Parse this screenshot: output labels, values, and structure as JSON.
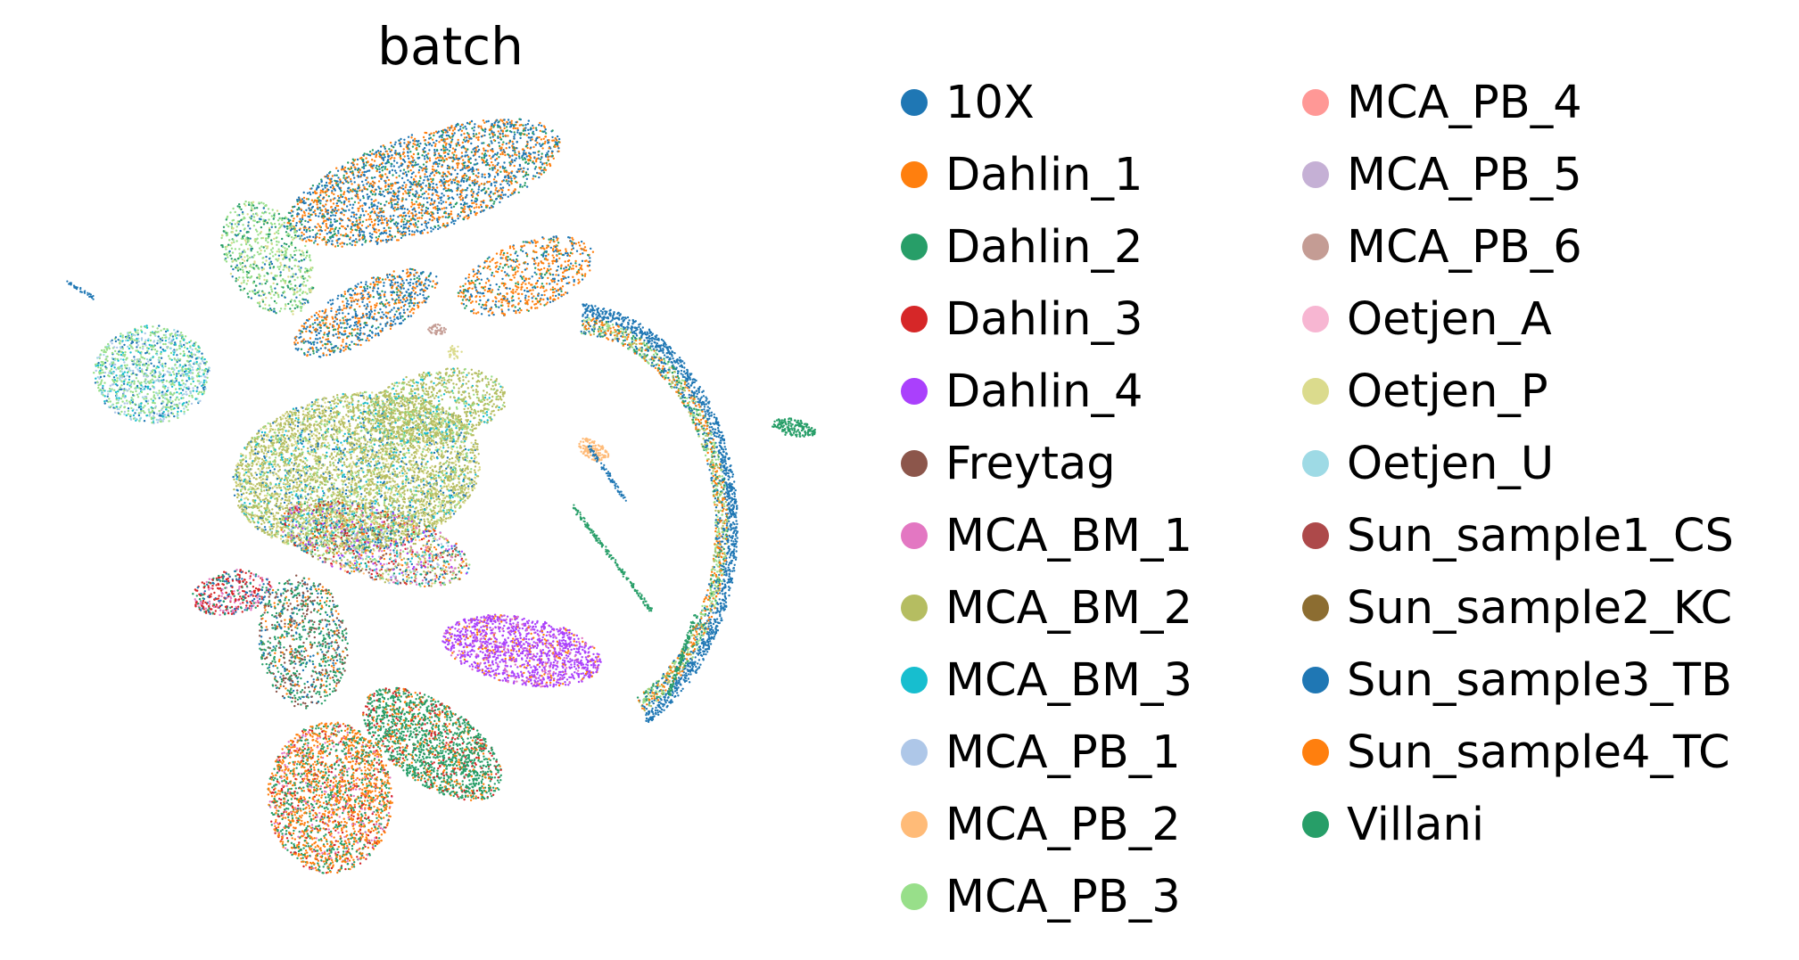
{
  "chart_data": {
    "type": "scatter",
    "title": "batch",
    "xlabel": "",
    "ylabel": "",
    "axes_visible": false,
    "grid": false,
    "legend_placement": "right, two columns",
    "legend": [
      {
        "name": "10X",
        "color": "#1f77b4"
      },
      {
        "name": "Dahlin_1",
        "color": "#ff7f0e"
      },
      {
        "name": "Dahlin_2",
        "color": "#279e68"
      },
      {
        "name": "Dahlin_3",
        "color": "#d62728"
      },
      {
        "name": "Dahlin_4",
        "color": "#aa40fc"
      },
      {
        "name": "Freytag",
        "color": "#8c564b"
      },
      {
        "name": "MCA_BM_1",
        "color": "#e377c2"
      },
      {
        "name": "MCA_BM_2",
        "color": "#b5bd61"
      },
      {
        "name": "MCA_BM_3",
        "color": "#17becf"
      },
      {
        "name": "MCA_PB_1",
        "color": "#aec7e8"
      },
      {
        "name": "MCA_PB_2",
        "color": "#ffbb78"
      },
      {
        "name": "MCA_PB_3",
        "color": "#98df8a"
      },
      {
        "name": "MCA_PB_4",
        "color": "#ff9896"
      },
      {
        "name": "MCA_PB_5",
        "color": "#c5b0d5"
      },
      {
        "name": "MCA_PB_6",
        "color": "#c49c94"
      },
      {
        "name": "Oetjen_A",
        "color": "#f7b6d2"
      },
      {
        "name": "Oetjen_P",
        "color": "#dbdb8d"
      },
      {
        "name": "Oetjen_U",
        "color": "#9edae5"
      },
      {
        "name": "Sun_sample1_CS",
        "color": "#ad494a"
      },
      {
        "name": "Sun_sample2_KC",
        "color": "#8c6d31"
      },
      {
        "name": "Sun_sample3_TB",
        "color": "#1f77b4"
      },
      {
        "name": "Sun_sample4_TC",
        "color": "#ff7f0e"
      },
      {
        "name": "Villani",
        "color": "#279e68"
      }
    ]
  }
}
